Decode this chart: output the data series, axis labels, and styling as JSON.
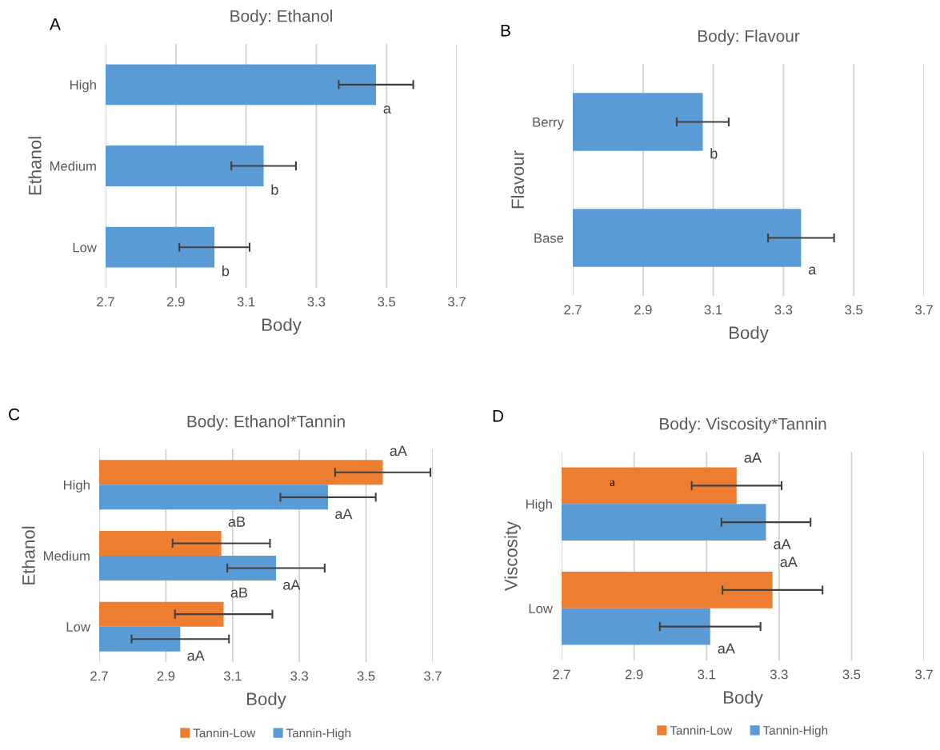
{
  "chart_data": [
    {
      "type": "bar",
      "orientation": "horizontal",
      "title": "Body: Ethanol",
      "xlabel": "Body",
      "ylabel": "Ethanol",
      "annotations": [
        "A"
      ],
      "categories": [
        "High",
        "Medium",
        "Low"
      ],
      "series": [
        {
          "color": "#5b9bd5",
          "values": [
            3.47,
            3.15,
            3.01
          ],
          "errors": [
            0.106,
            0.092,
            0.1
          ],
          "value_labels": [
            "a",
            "b",
            "b"
          ]
        }
      ],
      "xlim": [
        2.7,
        3.7
      ],
      "xticks": [
        2.7,
        2.9,
        3.1,
        3.3,
        3.5,
        3.7
      ],
      "grid": "x"
    },
    {
      "type": "bar",
      "orientation": "horizontal",
      "title": "Body: Flavour",
      "xlabel": "Body",
      "ylabel": "Flavour",
      "annotations": [
        "B"
      ],
      "categories": [
        "Berry",
        "Base"
      ],
      "series": [
        {
          "color": "#5b9bd5",
          "values": [
            3.07,
            3.35
          ],
          "errors": [
            0.074,
            0.094
          ],
          "value_labels": [
            "b",
            "a"
          ]
        }
      ],
      "xlim": [
        2.7,
        3.7
      ],
      "xticks": [
        2.7,
        2.9,
        3.1,
        3.3,
        3.5,
        3.7
      ],
      "grid": "x"
    },
    {
      "type": "bar",
      "orientation": "horizontal",
      "title": "Body: Ethanol*Tannin",
      "xlabel": "Body",
      "ylabel": "Ethanol",
      "annotations": [
        "C"
      ],
      "categories": [
        "High",
        "Medium",
        "Low"
      ],
      "series": [
        {
          "name": "Tannin-Low",
          "color": "#ed7d31",
          "values": [
            3.55,
            3.066,
            3.073
          ],
          "errors": [
            0.143,
            0.146,
            0.146
          ],
          "value_labels": [
            "aA",
            "aB",
            "aB"
          ]
        },
        {
          "name": "Tannin-High",
          "color": "#5b9bd5",
          "values": [
            3.386,
            3.23,
            2.943
          ],
          "errors": [
            0.143,
            0.146,
            0.146
          ],
          "value_labels": [
            "aA",
            "aA",
            "aA"
          ]
        }
      ],
      "xlim": [
        2.7,
        3.7
      ],
      "xticks": [
        2.7,
        2.9,
        3.1,
        3.3,
        3.5,
        3.7
      ],
      "grid": "x",
      "legend": "bottom"
    },
    {
      "type": "bar",
      "orientation": "horizontal",
      "title": "Body: Viscosity*Tannin",
      "xlabel": "Body",
      "ylabel": "Viscosity",
      "annotations": [
        "D",
        {
          "text": "a",
          "x": 2.84,
          "y": "High"
        }
      ],
      "categories": [
        "High",
        "Low"
      ],
      "series": [
        {
          "name": "Tannin-Low",
          "color": "#ed7d31",
          "values": [
            3.183,
            3.282
          ],
          "errors": [
            0.124,
            0.138
          ],
          "value_labels": [
            "aA",
            "aA"
          ]
        },
        {
          "name": "Tannin-High",
          "color": "#5b9bd5",
          "values": [
            3.264,
            3.11
          ],
          "errors": [
            0.123,
            0.139
          ],
          "value_labels": [
            "aA",
            "aA"
          ]
        }
      ],
      "xlim": [
        2.7,
        3.7
      ],
      "xticks": [
        2.7,
        2.9,
        3.1,
        3.3,
        3.5,
        3.7
      ],
      "grid": "x",
      "legend": "bottom"
    }
  ]
}
